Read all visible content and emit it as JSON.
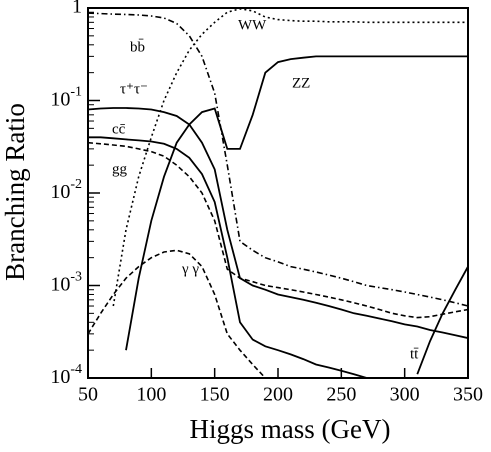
{
  "chart_data": {
    "type": "line",
    "xlabel": "Higgs mass (GeV)",
    "ylabel": "Branching Ratio",
    "x": [
      50,
      60,
      70,
      80,
      90,
      100,
      110,
      120,
      130,
      140,
      150,
      160,
      170,
      180,
      190,
      200,
      210,
      220,
      230,
      240,
      250,
      260,
      270,
      280,
      290,
      300,
      310,
      320,
      330,
      340,
      350
    ],
    "xlim": [
      50,
      350
    ],
    "xticks": [
      50,
      100,
      150,
      200,
      250,
      300,
      350
    ],
    "ylim": [
      0.0001,
      1
    ],
    "ylog": true,
    "yticks": [
      {
        "value": 0.0001,
        "label": "10-4"
      },
      {
        "value": 0.001,
        "label": "10-3"
      },
      {
        "value": 0.01,
        "label": "10-2"
      },
      {
        "value": 0.1,
        "label": "10-1"
      },
      1
    ],
    "series": [
      {
        "name": "bb̄",
        "color": "#000000",
        "style": "dashdot",
        "values": [
          0.88,
          0.87,
          0.86,
          0.85,
          0.84,
          0.82,
          0.78,
          0.68,
          0.5,
          0.3,
          0.12,
          0.02,
          0.003,
          0.0024,
          0.002,
          0.0018,
          0.0016,
          0.0015,
          0.0014,
          0.0013,
          0.0012,
          0.0011,
          0.001,
          0.00095,
          0.0009,
          0.00085,
          0.0008,
          0.00075,
          0.0007,
          0.00065,
          0.0006
        ]
      },
      {
        "name": "WW",
        "color": "#000000",
        "style": "dotted",
        "values": [
          null,
          null,
          0.0006,
          0.004,
          0.015,
          0.04,
          0.1,
          0.2,
          0.35,
          0.52,
          0.7,
          0.9,
          0.98,
          0.93,
          0.8,
          0.75,
          0.73,
          0.72,
          0.72,
          0.71,
          0.71,
          0.71,
          0.7,
          0.7,
          0.7,
          0.7,
          0.7,
          0.7,
          0.7,
          0.7,
          0.7
        ]
      },
      {
        "name": "ZZ",
        "color": "#000000",
        "style": "solid",
        "values": [
          null,
          null,
          null,
          0.0002,
          0.0012,
          0.005,
          0.015,
          0.035,
          0.055,
          0.075,
          0.082,
          0.03,
          0.03,
          0.07,
          0.2,
          0.26,
          0.28,
          0.29,
          0.3,
          0.3,
          0.3,
          0.3,
          0.3,
          0.3,
          0.3,
          0.3,
          0.3,
          0.3,
          0.3,
          0.3,
          0.3
        ]
      },
      {
        "name": "τ⁺τ⁻",
        "color": "#000000",
        "style": "solid",
        "values": [
          0.08,
          0.082,
          0.083,
          0.083,
          0.082,
          0.08,
          0.075,
          0.068,
          0.055,
          0.035,
          0.018,
          0.004,
          0.0012,
          0.001,
          0.0009,
          0.0008,
          0.00075,
          0.0007,
          0.00065,
          0.0006,
          0.00055,
          0.0005,
          0.00047,
          0.00044,
          0.00041,
          0.00038,
          0.00036,
          0.00033,
          0.00031,
          0.00029,
          0.00027
        ]
      },
      {
        "name": "cc̄",
        "color": "#000000",
        "style": "solid",
        "values": [
          0.04,
          0.04,
          0.039,
          0.038,
          0.037,
          0.036,
          0.034,
          0.03,
          0.024,
          0.016,
          0.008,
          0.002,
          0.0004,
          0.00026,
          0.00022,
          0.0002,
          0.00018,
          0.00016,
          0.00014,
          0.00013,
          0.00012,
          0.00011,
          0.0001,
          null,
          null,
          null,
          null,
          null,
          null,
          null,
          null
        ]
      },
      {
        "name": "gg",
        "color": "#000000",
        "style": "dashed",
        "values": [
          0.035,
          0.034,
          0.033,
          0.032,
          0.03,
          0.028,
          0.025,
          0.02,
          0.015,
          0.01,
          0.005,
          0.0015,
          0.0012,
          0.0011,
          0.001,
          0.00095,
          0.0009,
          0.00085,
          0.0008,
          0.00075,
          0.0007,
          0.00065,
          0.0006,
          0.00055,
          0.0005,
          0.00047,
          0.00045,
          0.00046,
          0.00049,
          0.00052,
          0.00055
        ]
      },
      {
        "name": "γ γ",
        "color": "#000000",
        "style": "dashed",
        "values": [
          0.0003,
          0.0005,
          0.0008,
          0.0012,
          0.0016,
          0.002,
          0.0023,
          0.0024,
          0.0022,
          0.0016,
          0.0008,
          0.0003,
          0.0002,
          0.00014,
          0.0001,
          null,
          null,
          null,
          null,
          null,
          null,
          null,
          null,
          null,
          null,
          null,
          null,
          null,
          null,
          null,
          null
        ]
      },
      {
        "name": "tt̄",
        "color": "#000000",
        "style": "solid",
        "values": [
          null,
          null,
          null,
          null,
          null,
          null,
          null,
          null,
          null,
          null,
          null,
          null,
          null,
          null,
          null,
          null,
          null,
          null,
          null,
          null,
          null,
          null,
          null,
          null,
          null,
          null,
          0.00011,
          0.00025,
          0.0005,
          0.0009,
          0.0016
        ]
      }
    ]
  }
}
